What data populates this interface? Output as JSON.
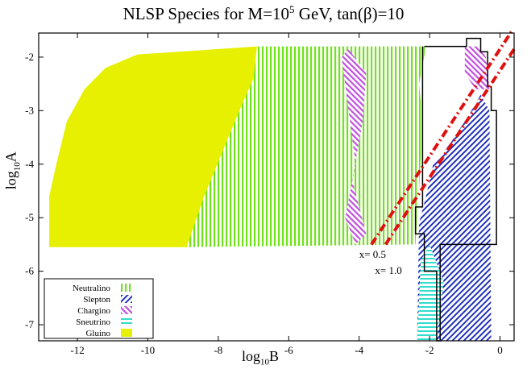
{
  "chart_data": {
    "type": "region-map",
    "title_prefix": "NLSP Species for M=10",
    "title_exponent": "5",
    "title_suffix": " GeV, tan(β)=10",
    "xlabel_base": "log",
    "xlabel_sub": "10",
    "xlabel_var": "B",
    "ylabel_base": "log",
    "ylabel_sub": "10",
    "ylabel_var": "A",
    "xlim": [
      -13.1,
      0.4
    ],
    "ylim": [
      -7.3,
      -1.55
    ],
    "xticks": [
      -12,
      -10,
      -8,
      -6,
      -4,
      -2,
      0
    ],
    "yticks": [
      -7,
      -6,
      -5,
      -4,
      -3,
      -2
    ],
    "legend": [
      {
        "label": "Neutralino",
        "color": "#6fe21a",
        "pattern": "vertical"
      },
      {
        "label": "Slepton",
        "color": "#2233bb",
        "pattern": "diagonal-right"
      },
      {
        "label": "Chargino",
        "color": "#c050e0",
        "pattern": "diagonal-left"
      },
      {
        "label": "Sneutrino",
        "color": "#33ddcc",
        "pattern": "horizontal"
      },
      {
        "label": "Gluino",
        "color": "#e6f000",
        "pattern": "solid"
      }
    ],
    "annotations": [
      {
        "text": "x= 0.5",
        "x": -4.0,
        "y": -5.75
      },
      {
        "text": "x= 1.0",
        "x": -3.55,
        "y": -6.05
      }
    ],
    "lines": [
      {
        "name": "x=0.5",
        "points": [
          [
            -3.65,
            -5.5
          ],
          [
            0.35,
            -1.5
          ]
        ]
      },
      {
        "name": "x=1.0",
        "points": [
          [
            -3.25,
            -5.5
          ],
          [
            0.4,
            -1.85
          ]
        ]
      }
    ],
    "regions": {
      "gluino": [
        [
          -12.8,
          -5.55
        ],
        [
          -12.8,
          -4.6
        ],
        [
          -12.6,
          -4.0
        ],
        [
          -12.3,
          -3.2
        ],
        [
          -11.8,
          -2.6
        ],
        [
          -11.2,
          -2.2
        ],
        [
          -10.3,
          -1.95
        ],
        [
          -8.0,
          -1.85
        ],
        [
          -6.9,
          -1.8
        ],
        [
          -7.0,
          -2.4
        ],
        [
          -7.4,
          -3.0
        ],
        [
          -7.9,
          -3.8
        ],
        [
          -8.4,
          -4.6
        ],
        [
          -8.8,
          -5.55
        ]
      ],
      "neutralino": [
        [
          -8.9,
          -5.55
        ],
        [
          -8.4,
          -4.6
        ],
        [
          -7.9,
          -3.8
        ],
        [
          -7.4,
          -3.0
        ],
        [
          -7.0,
          -2.4
        ],
        [
          -6.9,
          -1.8
        ],
        [
          -2.1,
          -1.8
        ],
        [
          -2.3,
          -2.5
        ],
        [
          -2.2,
          -3.2
        ],
        [
          -2.3,
          -4.5
        ],
        [
          -2.4,
          -5.5
        ]
      ],
      "chargino_left": [
        [
          -4.3,
          -1.85
        ],
        [
          -3.8,
          -2.3
        ],
        [
          -3.9,
          -3.2
        ],
        [
          -4.2,
          -4.3
        ],
        [
          -3.8,
          -5.3
        ],
        [
          -4.1,
          -5.5
        ],
        [
          -4.4,
          -5.0
        ],
        [
          -4.1,
          -4.0
        ],
        [
          -4.3,
          -3.0
        ],
        [
          -4.5,
          -2.0
        ]
      ],
      "slepton": [
        [
          -2.35,
          -7.3
        ],
        [
          -2.3,
          -5.1
        ],
        [
          -2.1,
          -4.6
        ],
        [
          -1.9,
          -4.0
        ],
        [
          -1.4,
          -3.6
        ],
        [
          -0.9,
          -3.1
        ],
        [
          -0.55,
          -2.7
        ],
        [
          -0.3,
          -3.0
        ],
        [
          -0.25,
          -7.3
        ]
      ],
      "chargino_right": [
        [
          -1.0,
          -1.8
        ],
        [
          -0.6,
          -1.8
        ],
        [
          -0.4,
          -2.0
        ],
        [
          -0.3,
          -2.6
        ],
        [
          -0.7,
          -2.6
        ],
        [
          -1.0,
          -2.3
        ]
      ],
      "sneutrino": [
        [
          -2.35,
          -7.3
        ],
        [
          -2.25,
          -5.8
        ],
        [
          -2.0,
          -5.5
        ],
        [
          -1.6,
          -6.2
        ],
        [
          -1.8,
          -7.3
        ]
      ]
    },
    "boundary": [
      [
        -2.15,
        -1.8
      ],
      [
        -0.95,
        -1.8
      ],
      [
        -0.95,
        -1.65
      ],
      [
        -0.55,
        -1.65
      ],
      [
        -0.55,
        -1.9
      ],
      [
        -0.35,
        -1.9
      ],
      [
        -0.35,
        -2.55
      ],
      [
        -0.25,
        -2.55
      ],
      [
        -0.25,
        -3.0
      ],
      [
        -0.1,
        -3.0
      ],
      [
        -0.1,
        -5.5
      ],
      [
        -1.7,
        -5.5
      ],
      [
        -1.7,
        -7.3
      ],
      [
        -1.8,
        -7.3
      ],
      [
        -1.8,
        -6.0
      ],
      [
        -2.15,
        -6.0
      ],
      [
        -2.15,
        -5.3
      ],
      [
        -2.4,
        -5.3
      ],
      [
        -2.4,
        -4.8
      ],
      [
        -2.2,
        -4.8
      ],
      [
        -2.2,
        -1.8
      ]
    ]
  }
}
